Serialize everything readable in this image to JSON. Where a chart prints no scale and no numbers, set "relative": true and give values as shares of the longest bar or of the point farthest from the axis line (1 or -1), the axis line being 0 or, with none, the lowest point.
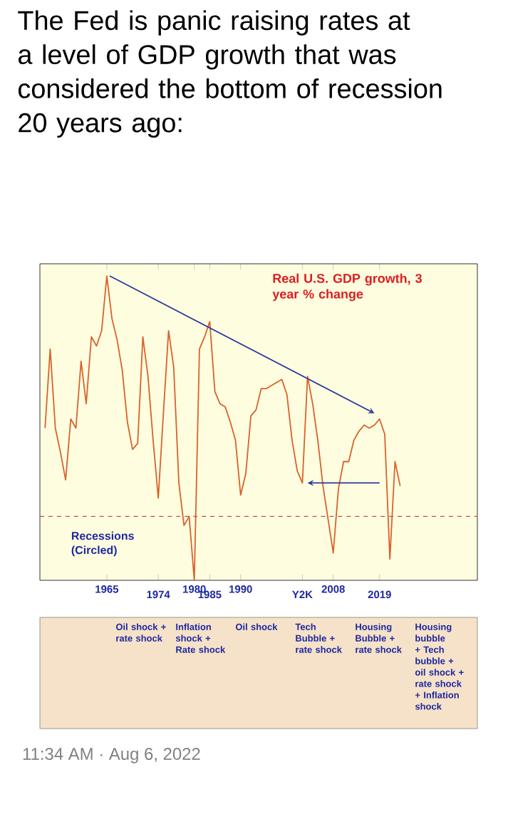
{
  "chart_data": {
    "type": "line",
    "title": "The Fed is panic raising rates at a level of GDP growth that was considered the bottom of recession 20 years ago:",
    "subtitle": "Real U.S. GDP growth, 3 year % change",
    "relative": true,
    "tick_labels": "x",
    "categories": [
      null,
      null,
      null,
      null,
      null,
      null,
      null,
      null,
      null,
      null,
      null,
      null,
      "1965",
      null,
      null,
      null,
      null,
      null,
      null,
      null,
      null,
      null,
      "1974",
      null,
      null,
      null,
      null,
      null,
      null,
      "1980",
      null,
      null,
      "1985",
      null,
      null,
      null,
      null,
      null,
      "1990",
      null,
      null,
      null,
      null,
      null,
      null,
      null,
      null,
      null,
      null,
      null,
      "Y2K",
      null,
      null,
      null,
      null,
      null,
      "2008",
      null,
      null,
      null,
      null,
      null,
      null,
      null,
      null,
      "2019",
      null,
      null,
      null,
      null
    ],
    "series": [
      {
        "color": "#d9622b",
        "values": [
          0.5,
          0.76,
          0.5,
          0.42,
          0.33,
          0.53,
          0.5,
          0.72,
          0.58,
          0.8,
          0.77,
          0.82,
          1.0,
          0.86,
          0.79,
          0.69,
          0.52,
          0.43,
          0.45,
          0.8,
          0.67,
          0.46,
          0.27,
          0.55,
          0.82,
          0.7,
          0.32,
          0.18,
          0.21,
          0,
          0.76,
          0.8,
          0.85,
          0.62,
          0.58,
          0.57,
          0.52,
          0.46,
          0.28,
          0.35,
          0.54,
          0.56,
          0.63,
          0.63,
          0.64,
          0.65,
          0.66,
          0.61,
          0.46,
          0.36,
          0.32,
          0.67,
          0.58,
          0.46,
          0.31,
          0.2,
          0.09,
          0.3,
          0.39,
          0.39,
          0.46,
          0.49,
          0.51,
          0.5,
          0.51,
          0.53,
          0.48,
          0.07,
          0.39,
          0.31
        ]
      }
    ],
    "ref_lines": [
      {
        "axis": "y",
        "value": 0.21,
        "color": "#c0504d",
        "line_style": "dashed"
      }
    ],
    "annotations": [
      "Recessions (Circled)",
      "Oil shock + rate shock",
      "Inflation shock + Rate shock",
      "Oil shock",
      "Tech Bubble + rate shock",
      "Housing Bubble + rate shock",
      "Housing bubble + Tech bubble + oil shock + rate shock + Inflation shock",
      "11:34 AM · Aug 6, 2022"
    ]
  }
}
